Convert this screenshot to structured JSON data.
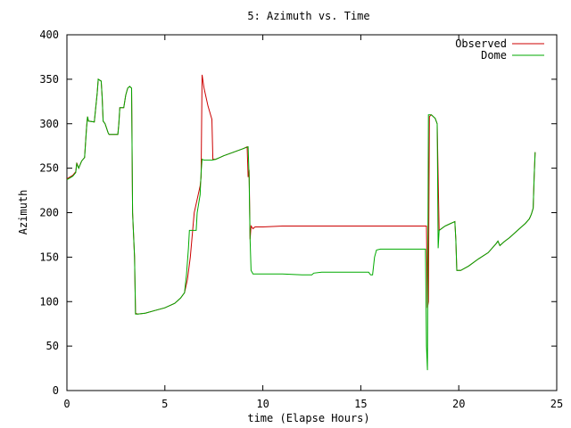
{
  "chart_data": {
    "type": "line",
    "title": "5: Azimuth vs. Time",
    "xlabel": "time (Elapse Hours)",
    "ylabel": "Azimuth",
    "xlim": [
      0,
      25
    ],
    "ylim": [
      0,
      400
    ],
    "xticks": [
      0,
      5,
      10,
      15,
      20,
      25
    ],
    "yticks": [
      0,
      50,
      100,
      150,
      200,
      250,
      300,
      350,
      400
    ],
    "grid": false,
    "legend": "top-right",
    "series": [
      {
        "name": "Observed",
        "color": "#cc0000",
        "points": [
          [
            0.0,
            238
          ],
          [
            0.3,
            242
          ],
          [
            0.45,
            246
          ],
          [
            0.5,
            256
          ],
          [
            0.6,
            250
          ],
          [
            0.75,
            258
          ],
          [
            0.9,
            262
          ],
          [
            1.0,
            296
          ],
          [
            1.05,
            308
          ],
          [
            1.1,
            303
          ],
          [
            1.4,
            302
          ],
          [
            1.55,
            335
          ],
          [
            1.6,
            350
          ],
          [
            1.75,
            348
          ],
          [
            1.8,
            330
          ],
          [
            1.85,
            303
          ],
          [
            1.95,
            300
          ],
          [
            2.1,
            290
          ],
          [
            2.15,
            288
          ],
          [
            2.6,
            288
          ],
          [
            2.65,
            300
          ],
          [
            2.7,
            318
          ],
          [
            2.9,
            318
          ],
          [
            3.0,
            332
          ],
          [
            3.1,
            340
          ],
          [
            3.2,
            342
          ],
          [
            3.3,
            340
          ],
          [
            3.35,
            200
          ],
          [
            3.45,
            150
          ],
          [
            3.5,
            87
          ],
          [
            3.6,
            86
          ],
          [
            4.0,
            87
          ],
          [
            4.5,
            90
          ],
          [
            5.0,
            93
          ],
          [
            5.5,
            98
          ],
          [
            5.8,
            104
          ],
          [
            6.0,
            110
          ],
          [
            6.15,
            125
          ],
          [
            6.3,
            150
          ],
          [
            6.5,
            200
          ],
          [
            6.8,
            230
          ],
          [
            6.85,
            240
          ],
          [
            6.9,
            355
          ],
          [
            7.0,
            340
          ],
          [
            7.2,
            320
          ],
          [
            7.4,
            305
          ],
          [
            7.45,
            260
          ],
          [
            7.6,
            260
          ],
          [
            7.8,
            262
          ],
          [
            8.0,
            264
          ],
          [
            8.5,
            268
          ],
          [
            9.0,
            272
          ],
          [
            9.2,
            274
          ],
          [
            9.25,
            240
          ],
          [
            9.3,
            248
          ],
          [
            9.35,
            170
          ],
          [
            9.4,
            185
          ],
          [
            9.5,
            182
          ],
          [
            9.6,
            184
          ],
          [
            10.0,
            184
          ],
          [
            11.0,
            185
          ],
          [
            12.0,
            185
          ],
          [
            15.0,
            185
          ],
          [
            18.2,
            185
          ],
          [
            18.35,
            185
          ],
          [
            18.4,
            93
          ],
          [
            18.45,
            100
          ],
          [
            18.5,
            308
          ],
          [
            18.6,
            310
          ],
          [
            18.8,
            306
          ],
          [
            18.9,
            300
          ],
          [
            19.0,
            180
          ],
          [
            19.3,
            185
          ],
          [
            19.6,
            188
          ],
          [
            19.8,
            190
          ],
          [
            19.85,
            170
          ],
          [
            19.9,
            135
          ],
          [
            20.1,
            135
          ],
          [
            20.5,
            140
          ],
          [
            21.0,
            148
          ],
          [
            21.5,
            155
          ],
          [
            21.7,
            160
          ],
          [
            21.9,
            165
          ],
          [
            22.0,
            168
          ],
          [
            22.1,
            163
          ],
          [
            22.3,
            167
          ],
          [
            22.6,
            172
          ],
          [
            23.0,
            180
          ],
          [
            23.4,
            188
          ],
          [
            23.6,
            193
          ],
          [
            23.7,
            198
          ],
          [
            23.8,
            205
          ],
          [
            23.85,
            240
          ],
          [
            23.9,
            268
          ]
        ]
      },
      {
        "name": "Dome",
        "color": "#00aa00",
        "points": [
          [
            0.0,
            237
          ],
          [
            0.3,
            241
          ],
          [
            0.45,
            245
          ],
          [
            0.5,
            255
          ],
          [
            0.6,
            250
          ],
          [
            0.75,
            258
          ],
          [
            0.9,
            262
          ],
          [
            1.0,
            295
          ],
          [
            1.05,
            308
          ],
          [
            1.1,
            303
          ],
          [
            1.4,
            302
          ],
          [
            1.55,
            335
          ],
          [
            1.6,
            350
          ],
          [
            1.75,
            348
          ],
          [
            1.8,
            330
          ],
          [
            1.85,
            303
          ],
          [
            1.95,
            300
          ],
          [
            2.1,
            290
          ],
          [
            2.15,
            288
          ],
          [
            2.6,
            288
          ],
          [
            2.65,
            300
          ],
          [
            2.7,
            318
          ],
          [
            2.9,
            318
          ],
          [
            3.0,
            332
          ],
          [
            3.1,
            340
          ],
          [
            3.2,
            342
          ],
          [
            3.3,
            340
          ],
          [
            3.35,
            200
          ],
          [
            3.45,
            150
          ],
          [
            3.5,
            86
          ],
          [
            3.6,
            86
          ],
          [
            4.0,
            87
          ],
          [
            4.5,
            90
          ],
          [
            5.0,
            93
          ],
          [
            5.5,
            98
          ],
          [
            5.8,
            104
          ],
          [
            6.0,
            110
          ],
          [
            6.1,
            130
          ],
          [
            6.2,
            160
          ],
          [
            6.25,
            180
          ],
          [
            6.6,
            180
          ],
          [
            6.65,
            200
          ],
          [
            6.8,
            220
          ],
          [
            6.85,
            245
          ],
          [
            6.9,
            260
          ],
          [
            7.0,
            259
          ],
          [
            7.4,
            259
          ],
          [
            7.6,
            260
          ],
          [
            7.8,
            262
          ],
          [
            8.0,
            264
          ],
          [
            8.5,
            268
          ],
          [
            9.0,
            272
          ],
          [
            9.25,
            274
          ],
          [
            9.3,
            240
          ],
          [
            9.35,
            170
          ],
          [
            9.4,
            135
          ],
          [
            9.5,
            131
          ],
          [
            10.0,
            131
          ],
          [
            11.0,
            131
          ],
          [
            12.0,
            130
          ],
          [
            12.5,
            130
          ],
          [
            12.6,
            132
          ],
          [
            13.0,
            133
          ],
          [
            15.0,
            133
          ],
          [
            15.4,
            133
          ],
          [
            15.5,
            130
          ],
          [
            15.6,
            130
          ],
          [
            15.7,
            150
          ],
          [
            15.8,
            158
          ],
          [
            16.0,
            159
          ],
          [
            17.0,
            159
          ],
          [
            18.3,
            159
          ],
          [
            18.35,
            50
          ],
          [
            18.4,
            23
          ],
          [
            18.45,
            310
          ],
          [
            18.6,
            310
          ],
          [
            18.8,
            306
          ],
          [
            18.9,
            300
          ],
          [
            18.95,
            160
          ],
          [
            19.0,
            180
          ],
          [
            19.3,
            185
          ],
          [
            19.6,
            188
          ],
          [
            19.8,
            190
          ],
          [
            19.85,
            170
          ],
          [
            19.9,
            135
          ],
          [
            20.1,
            135
          ],
          [
            20.5,
            140
          ],
          [
            21.0,
            148
          ],
          [
            21.5,
            155
          ],
          [
            21.7,
            160
          ],
          [
            21.9,
            165
          ],
          [
            22.0,
            168
          ],
          [
            22.1,
            163
          ],
          [
            22.3,
            167
          ],
          [
            22.6,
            172
          ],
          [
            23.0,
            180
          ],
          [
            23.4,
            188
          ],
          [
            23.6,
            193
          ],
          [
            23.7,
            198
          ],
          [
            23.8,
            205
          ],
          [
            23.85,
            240
          ],
          [
            23.9,
            268
          ]
        ]
      }
    ]
  }
}
